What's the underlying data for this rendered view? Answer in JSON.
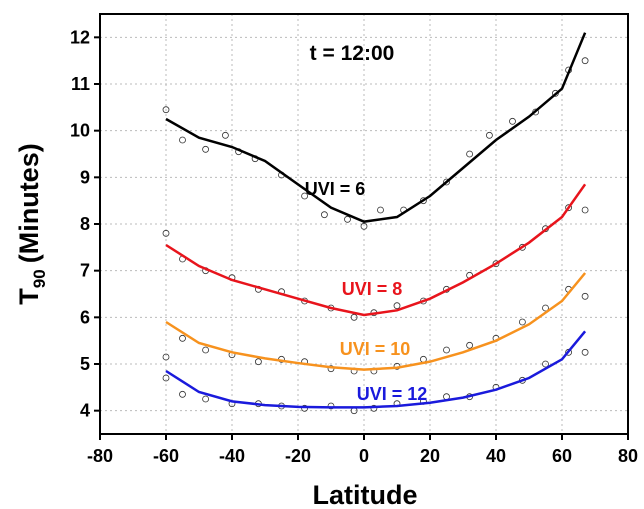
{
  "chart_data": {
    "type": "line",
    "x_label": "Latitude",
    "y_label": {
      "main": "T",
      "sub": "90",
      "rest": "(Minutes)"
    },
    "annotation": "t = 12:00",
    "xlim": [
      -80,
      80
    ],
    "xticks": [
      -80,
      -60,
      -40,
      -20,
      0,
      20,
      40,
      60,
      80
    ],
    "ylim": [
      3.5,
      12.5
    ],
    "yticks": [
      4,
      5,
      6,
      7,
      8,
      9,
      10,
      11,
      12
    ],
    "grid": true,
    "series": [
      {
        "name": "UVI = 6",
        "color": "#000000",
        "x": [
          -60,
          -50,
          -40,
          -30,
          -20,
          -10,
          0,
          10,
          20,
          30,
          40,
          50,
          60,
          67
        ],
        "values": [
          10.25,
          9.85,
          9.65,
          9.35,
          8.85,
          8.35,
          8.05,
          8.15,
          8.6,
          9.2,
          9.8,
          10.3,
          10.9,
          12.1
        ],
        "points": {
          "x": [
            -60,
            -55,
            -48,
            -42,
            -38,
            -33,
            -25,
            -18,
            -12,
            -5,
            0,
            5,
            12,
            18,
            25,
            32,
            38,
            45,
            52,
            58,
            62,
            67
          ],
          "y": [
            10.45,
            9.8,
            9.6,
            9.9,
            9.55,
            9.4,
            9.05,
            8.6,
            8.2,
            8.1,
            7.95,
            8.3,
            8.3,
            8.5,
            8.9,
            9.5,
            9.9,
            10.2,
            10.4,
            10.8,
            11.3,
            11.5
          ]
        }
      },
      {
        "name": "UVI = 8",
        "color": "#e8141c",
        "x": [
          -60,
          -50,
          -40,
          -30,
          -20,
          -10,
          0,
          10,
          20,
          30,
          40,
          50,
          60,
          67
        ],
        "values": [
          7.55,
          7.1,
          6.8,
          6.6,
          6.4,
          6.2,
          6.05,
          6.15,
          6.4,
          6.75,
          7.15,
          7.6,
          8.15,
          8.85
        ],
        "points": {
          "x": [
            -60,
            -55,
            -48,
            -40,
            -32,
            -25,
            -18,
            -10,
            -3,
            3,
            10,
            18,
            25,
            32,
            40,
            48,
            55,
            62,
            67
          ],
          "y": [
            7.8,
            7.25,
            7.0,
            6.85,
            6.6,
            6.55,
            6.35,
            6.2,
            6.0,
            6.1,
            6.25,
            6.35,
            6.6,
            6.9,
            7.15,
            7.5,
            7.9,
            8.35,
            8.3
          ]
        }
      },
      {
        "name": "UVI = 10",
        "color": "#f7921e",
        "x": [
          -60,
          -50,
          -40,
          -30,
          -20,
          -10,
          0,
          10,
          20,
          30,
          40,
          50,
          60,
          67
        ],
        "values": [
          5.9,
          5.45,
          5.25,
          5.12,
          5.02,
          4.93,
          4.88,
          4.92,
          5.05,
          5.25,
          5.5,
          5.85,
          6.35,
          6.95
        ],
        "points": {
          "x": [
            -60,
            -55,
            -48,
            -40,
            -32,
            -25,
            -18,
            -10,
            -3,
            3,
            10,
            18,
            25,
            32,
            40,
            48,
            55,
            62,
            67
          ],
          "y": [
            5.15,
            5.55,
            5.3,
            5.2,
            5.05,
            5.1,
            5.05,
            4.9,
            4.85,
            4.85,
            4.95,
            5.1,
            5.3,
            5.4,
            5.55,
            5.9,
            6.2,
            6.6,
            6.45
          ]
        }
      },
      {
        "name": "UVI = 12",
        "color": "#1a1adc",
        "x": [
          -60,
          -50,
          -40,
          -30,
          -20,
          -10,
          0,
          10,
          20,
          30,
          40,
          50,
          60,
          67
        ],
        "values": [
          4.85,
          4.4,
          4.2,
          4.12,
          4.08,
          4.07,
          4.07,
          4.1,
          4.17,
          4.28,
          4.45,
          4.7,
          5.1,
          5.7
        ],
        "points": {
          "x": [
            -60,
            -55,
            -48,
            -40,
            -32,
            -25,
            -18,
            -10,
            -3,
            3,
            10,
            18,
            25,
            32,
            40,
            48,
            55,
            62,
            67
          ],
          "y": [
            4.7,
            4.35,
            4.25,
            4.15,
            4.15,
            4.1,
            4.05,
            4.1,
            4.0,
            4.05,
            4.15,
            4.2,
            4.3,
            4.3,
            4.5,
            4.65,
            5.0,
            5.25,
            5.25
          ]
        }
      }
    ]
  }
}
